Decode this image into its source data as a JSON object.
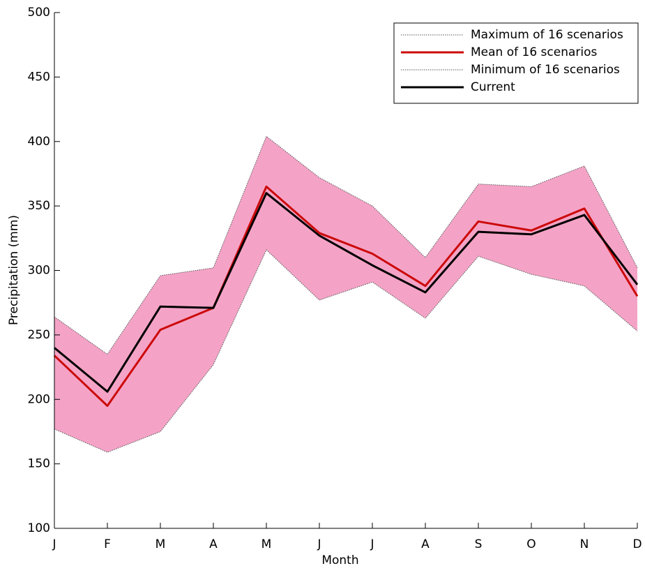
{
  "chart_data": {
    "type": "line",
    "xlabel": "Month",
    "ylabel": "Precipitation (mm)",
    "categories": [
      "J",
      "F",
      "M",
      "A",
      "M",
      "J",
      "J",
      "A",
      "S",
      "O",
      "N",
      "D"
    ],
    "series": [
      {
        "name": "Maximum of 16 scenarios",
        "color": "#555555",
        "style": "dotted",
        "values": [
          264,
          235,
          296,
          302,
          404,
          372,
          350,
          310,
          367,
          365,
          381,
          302
        ]
      },
      {
        "name": "Mean of 16 scenarios",
        "color": "#cc0a0a",
        "style": "solid",
        "values": [
          234,
          195,
          254,
          271,
          365,
          329,
          313,
          288,
          338,
          331,
          348,
          280
        ]
      },
      {
        "name": "Minimum of 16 scenarios",
        "color": "#555555",
        "style": "dotted",
        "values": [
          177,
          159,
          175,
          227,
          316,
          277,
          291,
          263,
          311,
          297,
          288,
          253
        ]
      },
      {
        "name": "Current",
        "color": "#000000",
        "style": "solid",
        "values": [
          240,
          206,
          272,
          271,
          360,
          327,
          304,
          283,
          330,
          328,
          343,
          289
        ]
      }
    ],
    "band_color": "#f4a3c6",
    "ylim": [
      100,
      500
    ],
    "yticks": [
      100,
      150,
      200,
      250,
      300,
      350,
      400,
      450,
      500
    ],
    "legend": "upper right",
    "grid": false
  }
}
